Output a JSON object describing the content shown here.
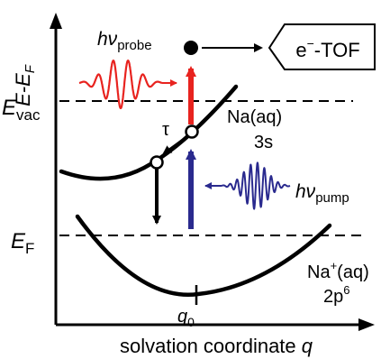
{
  "axis": {
    "y_label": {
      "main": "E-E",
      "sub": "F"
    },
    "x_label": {
      "main": "solvation coordinate ",
      "var": "q"
    }
  },
  "levels": {
    "vacuum": {
      "main": "E",
      "sub": "vac"
    },
    "fermi": {
      "main": "E",
      "sub": "F"
    }
  },
  "probe": {
    "main": "hν",
    "sub": "probe",
    "color": "#e8231f"
  },
  "pump": {
    "main": "hν",
    "sub": "pump",
    "color": "#2a2a8e"
  },
  "tof": {
    "pre": "e",
    "sup": "−",
    "post": "-TOF"
  },
  "upper_state": {
    "line1": "Na(aq)",
    "line2": "3s"
  },
  "lower_state": {
    "pre": "Na",
    "sup": "+",
    "post": "(aq)",
    "line2": "2p",
    "line2_sup": "6"
  },
  "relaxation_symbol": "τ",
  "minimum": {
    "main": "q",
    "sub": "0"
  }
}
